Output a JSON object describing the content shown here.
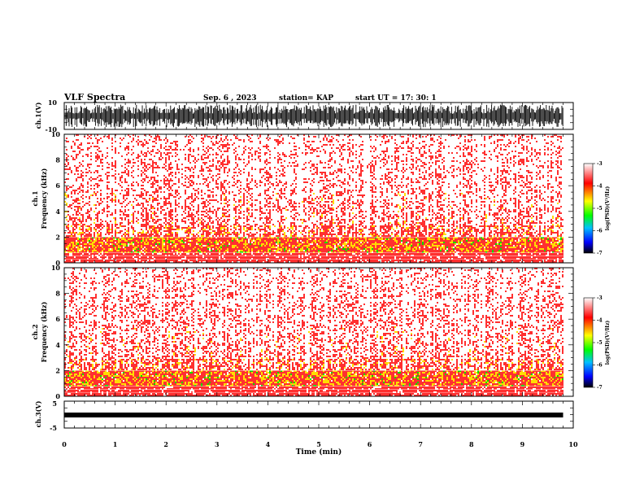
{
  "header": {
    "title": "VLF Spectra",
    "date": "Sep. 6 , 2023",
    "station": "station= KAP",
    "start": "start UT = 17: 30: 1"
  },
  "chart_data": [
    {
      "type": "line",
      "ylabel": "ch.1(V)",
      "ylim": [
        -10,
        10
      ],
      "y_ticks": [
        "10",
        "-10"
      ],
      "xlim": [
        0,
        10
      ]
    },
    {
      "type": "heatmap",
      "ylabel": "ch.1 Frequency (kHz)",
      "ylabel_lines": [
        "ch.1",
        "Frequency (kHz)"
      ],
      "ylim": [
        0,
        10
      ],
      "y_ticks": [
        "0",
        "2",
        "4",
        "6",
        "8",
        "10"
      ],
      "xlim": [
        0,
        10
      ],
      "data_end_min": 9.8,
      "colorbar": {
        "label": "log(PSD)(V²/Hz)",
        "range": [
          -7,
          -3
        ],
        "ticks": [
          "-3",
          "-4",
          "-5",
          "-6",
          "-7"
        ]
      }
    },
    {
      "type": "heatmap",
      "ylabel": "ch.2 Frequency (kHz)",
      "ylabel_lines": [
        "ch.2",
        "Frequency (kHz)"
      ],
      "ylim": [
        0,
        10
      ],
      "y_ticks": [
        "0",
        "2",
        "4",
        "6",
        "8",
        "10"
      ],
      "xlim": [
        0,
        10
      ],
      "data_end_min": 9.8,
      "colorbar": {
        "label": "log(PSD)(V²/Hz)",
        "range": [
          -7,
          -3
        ],
        "ticks": [
          "-3",
          "-4",
          "-5",
          "-6",
          "-7"
        ]
      }
    },
    {
      "type": "line",
      "ylabel": "ch.3(V)",
      "ylim": [
        -5,
        5
      ],
      "y_ticks": [
        "5",
        "-5"
      ],
      "xlim": [
        0,
        10
      ],
      "xlabel": "Time (min)",
      "x_ticks": [
        "0",
        "1",
        "2",
        "3",
        "4",
        "5",
        "6",
        "7",
        "8",
        "9",
        "10"
      ]
    }
  ],
  "colors": {
    "spectrum": [
      "#ffffff",
      "#ff3030",
      "#ffdd00",
      "#00dd00",
      "#0000ff"
    ],
    "colorbar": [
      "#ffffff",
      "#ff0000",
      "#ffff00",
      "#00ff00",
      "#00c0ff",
      "#0000ff",
      "#000000"
    ]
  }
}
